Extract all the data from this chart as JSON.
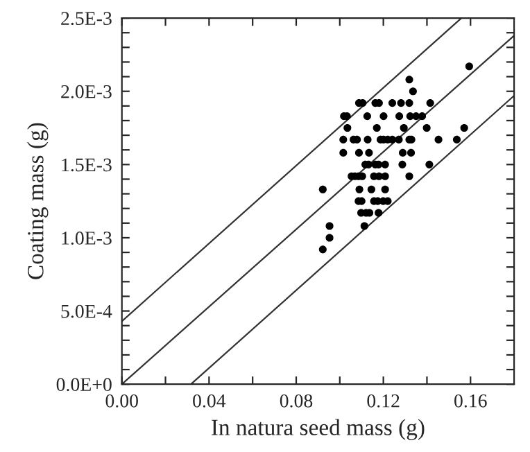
{
  "chart_data": {
    "type": "scatter",
    "xlabel": "In natura seed mass (g)",
    "ylabel": "Coating mass (g)",
    "xlim": [
      0,
      0.18
    ],
    "ylim": [
      0,
      0.0025
    ],
    "xticks": [
      {
        "value": 0,
        "label": "0.00"
      },
      {
        "value": 0.02,
        "label": null
      },
      {
        "value": 0.04,
        "label": "0.04"
      },
      {
        "value": 0.06,
        "label": null
      },
      {
        "value": 0.08,
        "label": "0.08"
      },
      {
        "value": 0.1,
        "label": null
      },
      {
        "value": 0.12,
        "label": "0.12"
      },
      {
        "value": 0.14,
        "label": null
      },
      {
        "value": 0.16,
        "label": "0.16"
      }
    ],
    "yticks": [
      {
        "value": 0,
        "label": "0.0E+0"
      },
      {
        "value": 0.0001,
        "label": null
      },
      {
        "value": 0.0002,
        "label": null
      },
      {
        "value": 0.0003,
        "label": null
      },
      {
        "value": 0.0004,
        "label": null
      },
      {
        "value": 0.0005,
        "label": "5.0E-4"
      },
      {
        "value": 0.0006,
        "label": null
      },
      {
        "value": 0.0007,
        "label": null
      },
      {
        "value": 0.0008,
        "label": null
      },
      {
        "value": 0.0009,
        "label": null
      },
      {
        "value": 0.001,
        "label": "1.0E-3"
      },
      {
        "value": 0.0011,
        "label": null
      },
      {
        "value": 0.0012,
        "label": null
      },
      {
        "value": 0.0013,
        "label": null
      },
      {
        "value": 0.0014,
        "label": null
      },
      {
        "value": 0.0015,
        "label": "1.5E-3"
      },
      {
        "value": 0.0016,
        "label": null
      },
      {
        "value": 0.0017,
        "label": null
      },
      {
        "value": 0.0018,
        "label": null
      },
      {
        "value": 0.0019,
        "label": null
      },
      {
        "value": 0.002,
        "label": "2.0E-3"
      },
      {
        "value": 0.0021,
        "label": null
      },
      {
        "value": 0.0022,
        "label": null
      },
      {
        "value": 0.0023,
        "label": null
      },
      {
        "value": 0.0024,
        "label": null
      },
      {
        "value": 0.0025,
        "label": "2.5E-3"
      }
    ],
    "grid": false,
    "series": [
      {
        "marker": "circle",
        "color": "#000000",
        "x": [
          0.1594,
          0.1319,
          0.1336,
          0.1088,
          0.1105,
          0.1163,
          0.118,
          0.1241,
          0.1281,
          0.1319,
          0.1415,
          0.1019,
          0.1033,
          0.1126,
          0.1201,
          0.1273,
          0.1323,
          0.135,
          0.1378,
          0.1035,
          0.117,
          0.1294,
          0.1399,
          0.1571,
          0.1016,
          0.1063,
          0.1079,
          0.1128,
          0.1187,
          0.1201,
          0.122,
          0.1241,
          0.1271,
          0.1319,
          0.1329,
          0.1453,
          0.1537,
          0.1016,
          0.1088,
          0.1134,
          0.1289,
          0.1327,
          0.1117,
          0.1132,
          0.1163,
          0.1178,
          0.1208,
          0.1287,
          0.1411,
          0.1054,
          0.1069,
          0.1086,
          0.1103,
          0.1157,
          0.118,
          0.1208,
          0.1319,
          0.0922,
          0.109,
          0.1145,
          0.1208,
          0.1086,
          0.11,
          0.1157,
          0.1174,
          0.1199,
          0.122,
          0.1098,
          0.1121,
          0.1136,
          0.1178,
          0.0953,
          0.1113,
          0.0953,
          0.0922
        ],
        "values": [
          0.00217,
          0.00208,
          0.002,
          0.00192,
          0.00192,
          0.00192,
          0.00192,
          0.00192,
          0.00192,
          0.00192,
          0.00192,
          0.00183,
          0.00183,
          0.00183,
          0.00183,
          0.00183,
          0.00183,
          0.00183,
          0.00183,
          0.00175,
          0.00175,
          0.00175,
          0.00175,
          0.00175,
          0.00167,
          0.00167,
          0.00167,
          0.00167,
          0.00167,
          0.00167,
          0.00167,
          0.00167,
          0.00167,
          0.00167,
          0.00167,
          0.00167,
          0.00167,
          0.00158,
          0.00158,
          0.00158,
          0.00158,
          0.00158,
          0.0015,
          0.0015,
          0.0015,
          0.0015,
          0.0015,
          0.0015,
          0.0015,
          0.00142,
          0.00142,
          0.00142,
          0.00142,
          0.00142,
          0.00142,
          0.00142,
          0.00142,
          0.00133,
          0.00133,
          0.00133,
          0.00133,
          0.00125,
          0.00125,
          0.00125,
          0.00125,
          0.00125,
          0.00125,
          0.00117,
          0.00117,
          0.00117,
          0.00117,
          0.00108,
          0.00108,
          0.001,
          0.00092
        ]
      },
      {
        "type": "line",
        "marker": "none",
        "color": "#333333",
        "x": [
          0,
          0.1558
        ],
        "values": [
          0.00043,
          0.0025
        ]
      },
      {
        "type": "line",
        "marker": "none",
        "color": "#333333",
        "x": [
          0,
          0.18
        ],
        "values": [
          0,
          0.00238
        ]
      },
      {
        "type": "line",
        "marker": "none",
        "color": "#333333",
        "x": [
          0.0317,
          0.18
        ],
        "values": [
          0,
          0.00197
        ]
      }
    ]
  }
}
